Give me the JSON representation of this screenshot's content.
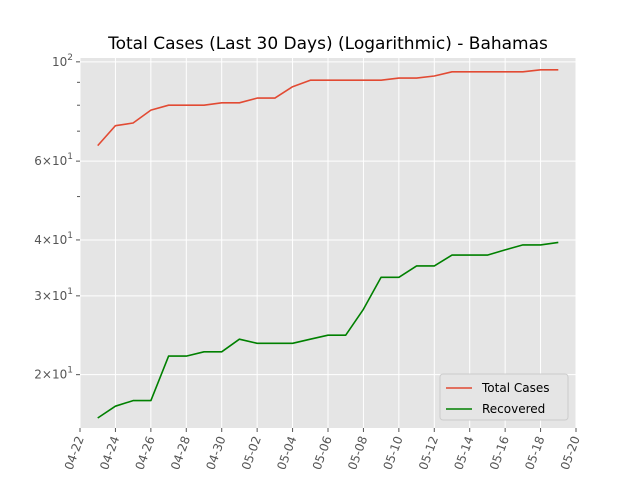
{
  "chart_data": {
    "type": "line",
    "title": "Total Cases (Last 30 Days) (Logarithmic) - Bahamas",
    "xlabel": "",
    "ylabel": "",
    "x_scale": "date",
    "y_scale": "log",
    "xlim": [
      "2020-04-22",
      "2020-05-20"
    ],
    "ylim": [
      15.2,
      102
    ],
    "grid": true,
    "legend_position": "bottom-right",
    "x_tick_labels": [
      "04-22",
      "04-24",
      "04-26",
      "04-28",
      "04-30",
      "05-02",
      "05-04",
      "05-06",
      "05-08",
      "05-10",
      "05-12",
      "05-14",
      "05-16",
      "05-18",
      "05-20"
    ],
    "y_ticks": [
      {
        "value": 20,
        "mantissa": "2",
        "exponent": "1"
      },
      {
        "value": 30,
        "mantissa": "3",
        "exponent": "1"
      },
      {
        "value": 40,
        "mantissa": "4",
        "exponent": "1"
      },
      {
        "value": 60,
        "mantissa": "6",
        "exponent": "1"
      },
      {
        "value": 100,
        "mantissa": "10",
        "exponent": "2"
      }
    ],
    "y_minor_ticks": [
      50,
      70,
      80,
      90
    ],
    "x": [
      "2020-04-23",
      "2020-04-24",
      "2020-04-25",
      "2020-04-26",
      "2020-04-27",
      "2020-04-28",
      "2020-04-29",
      "2020-04-30",
      "2020-05-01",
      "2020-05-02",
      "2020-05-03",
      "2020-05-04",
      "2020-05-05",
      "2020-05-06",
      "2020-05-07",
      "2020-05-08",
      "2020-05-09",
      "2020-05-10",
      "2020-05-11",
      "2020-05-12",
      "2020-05-13",
      "2020-05-14",
      "2020-05-15",
      "2020-05-16",
      "2020-05-17",
      "2020-05-18",
      "2020-05-19"
    ],
    "series": [
      {
        "name": "Total Cases",
        "color": "#E24A33",
        "values": [
          65,
          72,
          73,
          78,
          80,
          80,
          80,
          81,
          81,
          83,
          83,
          88,
          91,
          91,
          91,
          91,
          91,
          92,
          92,
          93,
          95,
          95,
          95,
          95,
          95,
          96,
          96
        ]
      },
      {
        "name": "Recovered",
        "color": "#008000",
        "values": [
          16,
          17,
          17.5,
          17.5,
          22,
          22,
          22.5,
          22.5,
          24,
          23.5,
          23.5,
          23.5,
          24,
          24.5,
          24.5,
          28,
          33,
          33,
          35,
          35,
          37,
          37,
          37,
          38,
          39,
          39,
          39.5
        ]
      }
    ]
  }
}
